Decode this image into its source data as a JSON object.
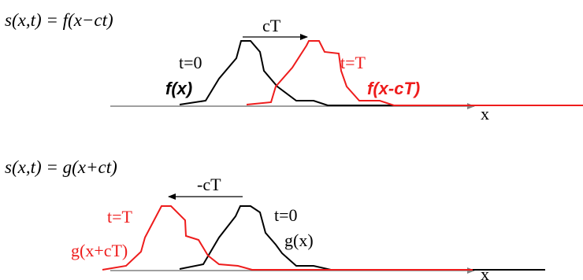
{
  "colors": {
    "black": "#000000",
    "red": "#ee1c1c",
    "axis": "#808080"
  },
  "top_panel": {
    "equation": "s(x,t) = f(x−ct)",
    "shift_label": "cT",
    "pulse_t0_time": "t=0",
    "pulse_t0_func": "f(x)",
    "pulse_tT_time": "t=T",
    "pulse_tT_func": "f(x-cT)",
    "axis_label": "x"
  },
  "bottom_panel": {
    "equation": "s(x,t) = g(x+ct)",
    "shift_label": "-cT",
    "pulse_tT_time": "t=T",
    "pulse_tT_func": "g(x+cT)",
    "pulse_t0_time": "t=0",
    "pulse_t0_func": "g(x)",
    "axis_label": "x"
  }
}
